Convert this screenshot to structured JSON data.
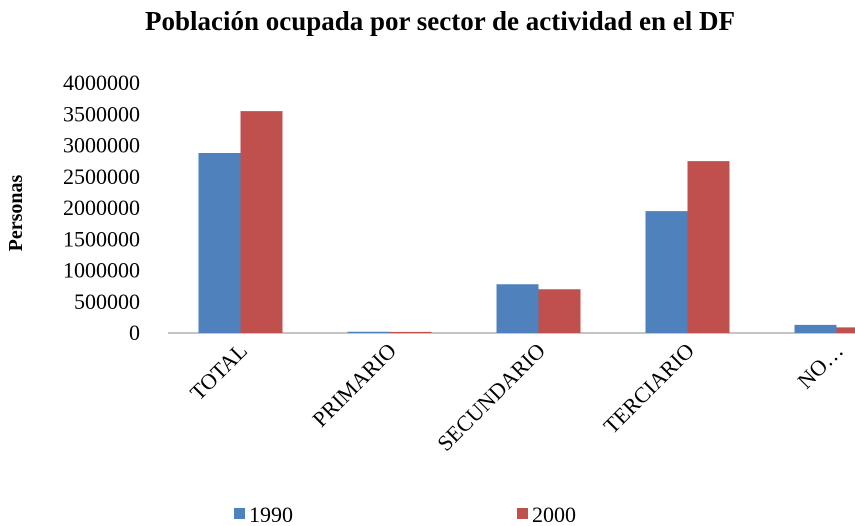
{
  "chart_data": {
    "type": "bar",
    "title": "Población ocupada por sector de actividad en el DF",
    "y_label": "Personas",
    "categories": [
      "TOTAL",
      "PRIMARIO",
      "SECUNDARIO",
      "TERCIARIO",
      "NO…"
    ],
    "series": [
      {
        "name": "1990",
        "color": "#4f81bd",
        "values": [
          2880000,
          20000,
          780000,
          1950000,
          130000
        ]
      },
      {
        "name": "2000",
        "color": "#c0504d",
        "values": [
          3550000,
          18000,
          700000,
          2750000,
          90000
        ]
      }
    ],
    "ylim": [
      0,
      4000000
    ],
    "yticks": [
      0,
      500000,
      1000000,
      1500000,
      2000000,
      2500000,
      3000000,
      3500000,
      4000000
    ],
    "legend": "bottom"
  }
}
